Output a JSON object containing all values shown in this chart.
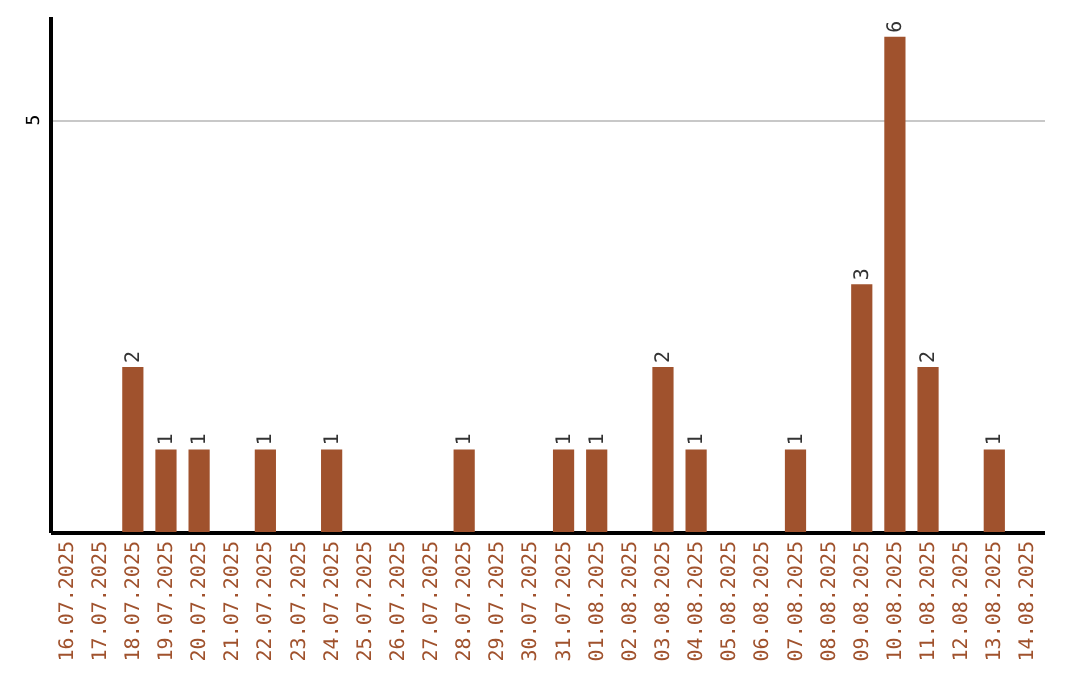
{
  "chart_data": {
    "type": "bar",
    "categories": [
      "16.07.2025",
      "17.07.2025",
      "18.07.2025",
      "19.07.2025",
      "20.07.2025",
      "21.07.2025",
      "22.07.2025",
      "23.07.2025",
      "24.07.2025",
      "25.07.2025",
      "26.07.2025",
      "27.07.2025",
      "28.07.2025",
      "29.07.2025",
      "30.07.2025",
      "31.07.2025",
      "01.08.2025",
      "02.08.2025",
      "03.08.2025",
      "04.08.2025",
      "05.08.2025",
      "06.08.2025",
      "07.08.2025",
      "08.08.2025",
      "09.08.2025",
      "10.08.2025",
      "11.08.2025",
      "12.08.2025",
      "13.08.2025",
      "14.08.2025"
    ],
    "values": [
      0,
      0,
      2,
      1,
      1,
      0,
      1,
      0,
      1,
      0,
      0,
      0,
      1,
      0,
      0,
      1,
      1,
      0,
      2,
      1,
      0,
      0,
      1,
      0,
      3,
      6,
      2,
      0,
      1,
      0
    ],
    "value_labels": [
      null,
      null,
      "2",
      "1",
      "1",
      null,
      "1",
      null,
      "1",
      null,
      null,
      null,
      "1",
      null,
      null,
      "1",
      "1",
      null,
      "2",
      "1",
      null,
      null,
      "1",
      null,
      "3",
      "6",
      "2",
      null,
      "1",
      null
    ],
    "color": "#a0522d",
    "ylim": [
      0,
      6.25
    ],
    "yticks": [
      5
    ],
    "grid": "y"
  }
}
